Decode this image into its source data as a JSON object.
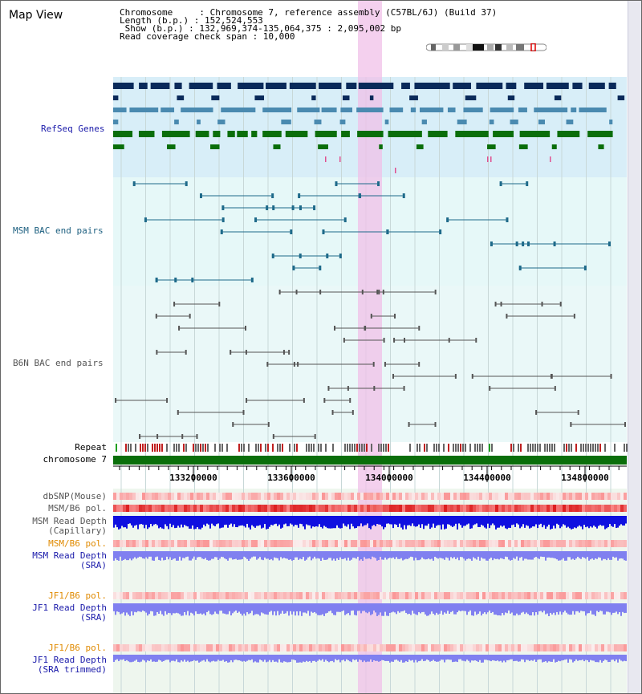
{
  "title": "Map View",
  "header": {
    "l1": "Chromosome     : Chromosome 7, reference assembly (C57BL/6J) (Build 37)",
    "l2": "Length (b.p.) : 152,524,553",
    "l3": " Show (b.p.) : 132,969,374-135,064,375 : 2,095,002 bp",
    "l4": "Read coverage check span : 10,000"
  },
  "tracks": {
    "refseq": "RefSeq Genes",
    "msm_bac": "MSM BAC end pairs",
    "b6n_bac": "B6N BAC end pairs",
    "repeat": "Repeat",
    "chromosome": "chromosome 7",
    "dbsnp": "dbSNP(Mouse)",
    "msm_pol": "MSM/B6 pol.",
    "msm_depth_cap_1": "MSM Read Depth",
    "msm_depth_cap_2": "(Capillary)",
    "msm_pol2": "MSM/B6 pol.",
    "msm_depth_sra_1": "MSM Read Depth",
    "msm_depth_sra_2": "(SRA)",
    "jf1_pol": "JF1/B6 pol.",
    "jf1_depth_sra_1": "JF1 Read Depth",
    "jf1_depth_sra_2": "(SRA)",
    "jf1_pol2": "JF1/B6 pol.",
    "jf1_depth_trim_1": "JF1 Read Depth",
    "jf1_depth_trim_2": "(SRA trimmed)"
  },
  "axis": {
    "ticks": [
      "133200000",
      "133600000",
      "134000000",
      "134400000",
      "134800000"
    ]
  },
  "colors": {
    "navy": "#0a2a5a",
    "refseq_mid": "#4a8ab0",
    "refseq_green": "#0a6e0a",
    "msm_bac": "#1e6a8a",
    "b6n_bac": "#555555",
    "chromosome": "#0a6e0a",
    "highlight": "#f0c0e8",
    "depth_dark": "#1010e0",
    "depth_light": "#8080f0"
  }
}
